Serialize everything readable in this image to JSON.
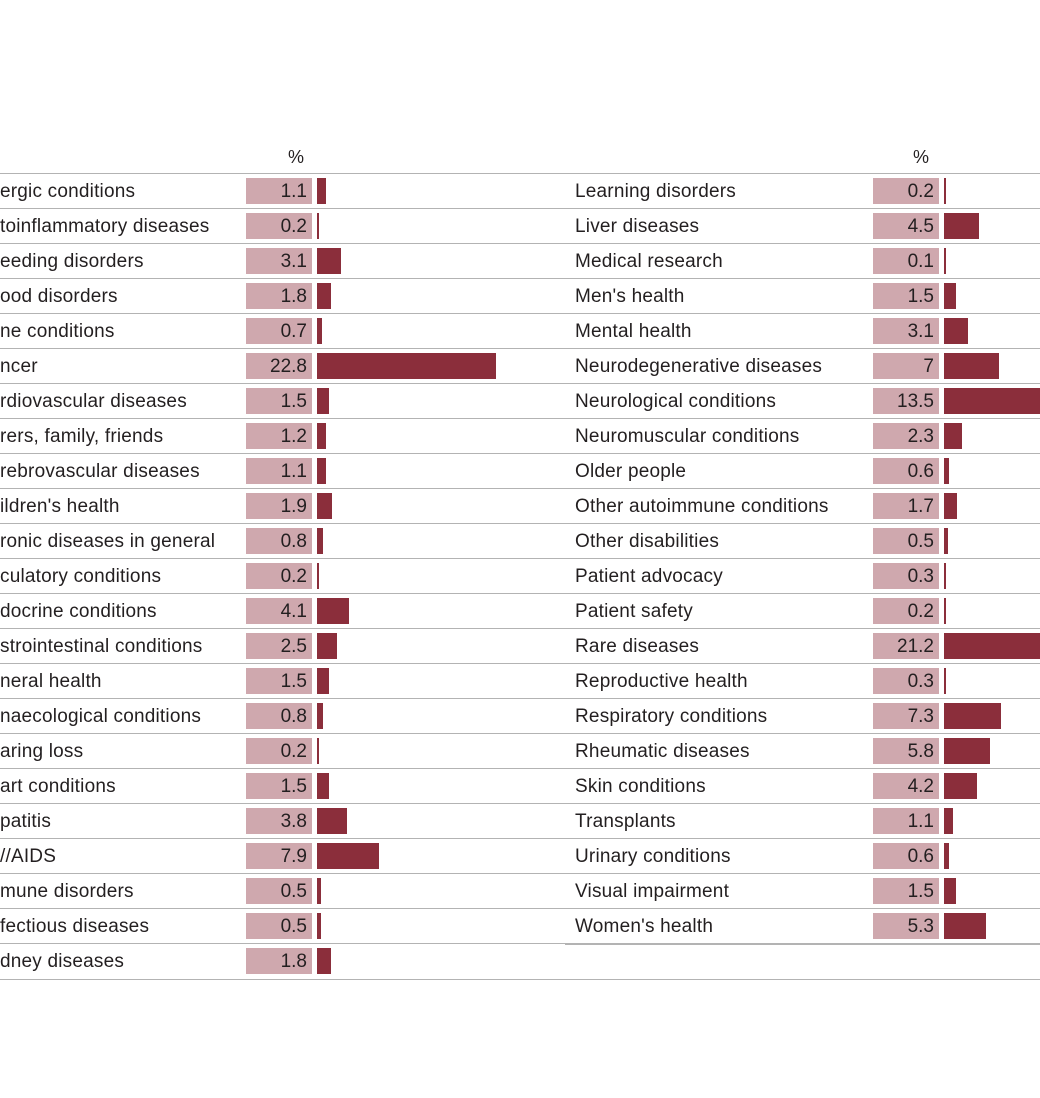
{
  "colors": {
    "bar": "#8b2e3b",
    "value_box": "#cfa8ae",
    "rule": "#b3b3b3"
  },
  "unit_header": "%",
  "chart_data": [
    {
      "type": "bar",
      "orientation": "horizontal",
      "xlabel": "%",
      "categories": [
        "ergic conditions",
        "toinflammatory diseases",
        "eeding disorders",
        "ood disorders",
        "ne conditions",
        "ncer",
        "rdiovascular diseases",
        "rers, family, friends",
        "rebrovascular diseases",
        "ildren's health",
        "ronic diseases in general",
        "culatory conditions",
        "docrine conditions",
        "strointestinal conditions",
        "neral health",
        "naecological conditions",
        "aring loss",
        "art conditions",
        "patitis",
        "//AIDS",
        "mune disorders",
        "fectious diseases",
        "dney diseases"
      ],
      "values": [
        "1.1",
        "0.2",
        "3.1",
        "1.8",
        "0.7",
        "22.8",
        "1.5",
        "1.2",
        "1.1",
        "1.9",
        "0.8",
        "0.2",
        "4.1",
        "2.5",
        "1.5",
        "0.8",
        "0.2",
        "1.5",
        "3.8",
        "7.9",
        "0.5",
        "0.5",
        "1.8"
      ]
    },
    {
      "type": "bar",
      "orientation": "horizontal",
      "xlabel": "%",
      "categories": [
        "Learning disorders",
        "Liver diseases",
        "Medical research",
        "Men's health",
        "Mental health",
        "Neurodegenerative diseases",
        "Neurological conditions",
        "Neuromuscular conditions",
        "Older people",
        "Other autoimmune conditions",
        "Other disabilities",
        "Patient advocacy",
        "Patient safety",
        "Rare diseases",
        "Reproductive health",
        "Respiratory conditions",
        "Rheumatic diseases",
        "Skin conditions",
        "Transplants",
        "Urinary conditions",
        "Visual impairment",
        "Women's health"
      ],
      "values": [
        "0.2",
        "4.5",
        "0.1",
        "1.5",
        "3.1",
        "7",
        "13.5",
        "2.3",
        "0.6",
        "1.7",
        "0.5",
        "0.3",
        "0.2",
        "21.2",
        "0.3",
        "7.3",
        "5.8",
        "4.2",
        "1.1",
        "0.6",
        "1.5",
        "5.3"
      ]
    }
  ]
}
